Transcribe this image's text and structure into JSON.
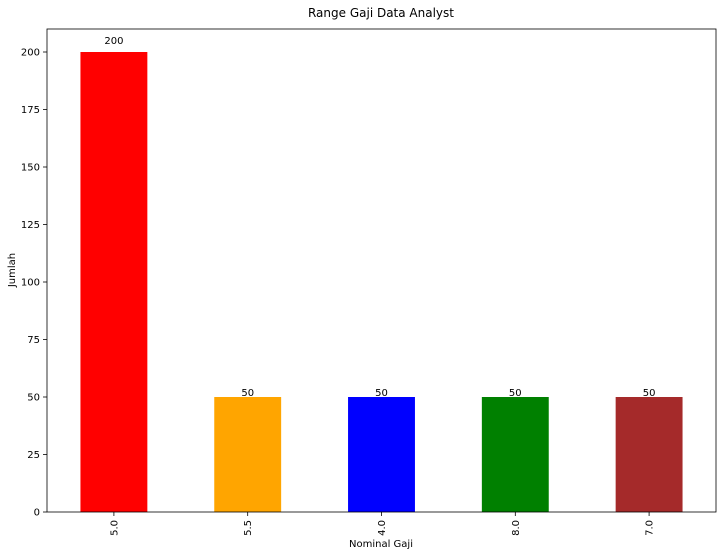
{
  "chart_data": {
    "type": "bar",
    "title": "Range Gaji Data Analyst",
    "xlabel": "Nominal Gaji",
    "ylabel": "Jumlah",
    "categories": [
      "5.0",
      "5.5",
      "4.0",
      "8.0",
      "7.0"
    ],
    "values": [
      200,
      50,
      50,
      50,
      50
    ],
    "data_labels": [
      "200",
      "50",
      "50",
      "50",
      "50"
    ],
    "colors": [
      "#ff0000",
      "#ffa500",
      "#0000ff",
      "#008000",
      "#a52a2a"
    ],
    "ylim": [
      0,
      210
    ],
    "yticks": [
      0,
      25,
      50,
      75,
      100,
      125,
      150,
      175,
      200
    ],
    "grid": false,
    "legend": "none"
  }
}
